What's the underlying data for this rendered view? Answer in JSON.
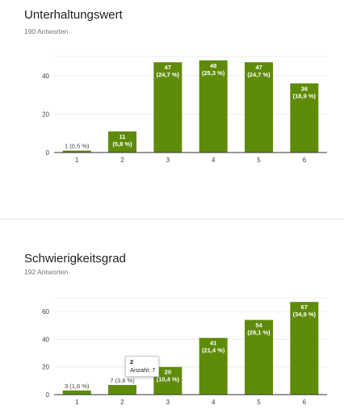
{
  "colors": {
    "bar": "#5f8b0a",
    "grid": "#ececec",
    "axis": "#333333"
  },
  "charts": [
    {
      "title": "Unterhaltungswert",
      "responses": "190 Antworten"
    },
    {
      "title": "Schwierigkeitsgrad",
      "responses": "192 Antworten",
      "tooltip": {
        "category": "2",
        "text": "Anzahl: 7"
      }
    }
  ],
  "chart_data": [
    {
      "type": "bar",
      "title": "Unterhaltungswert",
      "subtitle": "190 Antworten",
      "categories": [
        "1",
        "2",
        "3",
        "4",
        "5",
        "6"
      ],
      "values": [
        1,
        11,
        47,
        48,
        47,
        36
      ],
      "percent_labels": [
        "(0,5 %)",
        "(5,8 %)",
        "(24,7 %)",
        "(25,3 %)",
        "(24,7 %)",
        "(18,9 %)"
      ],
      "ylim": [
        0,
        50
      ],
      "yticks": [
        0,
        20,
        40
      ],
      "grid": true,
      "legend": "none"
    },
    {
      "type": "bar",
      "title": "Schwierigkeitsgrad",
      "subtitle": "192 Antworten",
      "categories": [
        "1",
        "2",
        "3",
        "4",
        "5",
        "6"
      ],
      "values": [
        3,
        7,
        20,
        41,
        54,
        67
      ],
      "percent_labels": [
        "(1,6 %)",
        "(3,6 %)",
        "(10,4 %)",
        "(21,4 %)",
        "(28,1 %)",
        "(34,9 %)"
      ],
      "ylim": [
        0,
        70
      ],
      "yticks": [
        0,
        20,
        40,
        60
      ],
      "grid": true,
      "legend": "none"
    }
  ]
}
